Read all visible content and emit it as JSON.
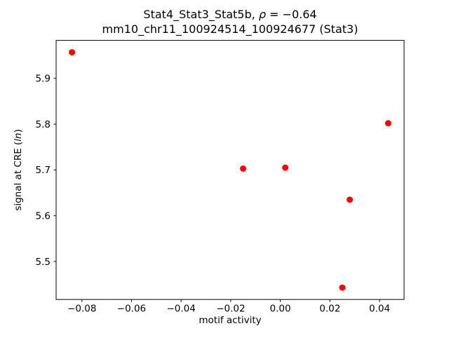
{
  "chart_data": {
    "type": "scatter",
    "title_line1": "Stat4_Stat3_Stat5b, ρ = −0.64",
    "title_line2": "mm10_chr11_100924514_100924677 (Stat3)",
    "title_parts": {
      "pre": "Stat4_Stat3_Stat5b, ",
      "rho": "ρ",
      "eq": " = −0.64"
    },
    "xlabel": "motif activity",
    "ylabel": "signal at CRE (ln)",
    "ylabel_parts": {
      "pre": "signal at CRE (",
      "italic": "ln",
      "post": ")"
    },
    "xlim": [
      -0.0904,
      0.0499
    ],
    "ylim": [
      5.417,
      5.983
    ],
    "xticks": [
      -0.08,
      -0.06,
      -0.04,
      -0.02,
      0.0,
      0.02,
      0.04
    ],
    "yticks": [
      5.5,
      5.6,
      5.7,
      5.8,
      5.9
    ],
    "xtick_decimals": 2,
    "ytick_decimals": 1,
    "points": [
      {
        "x": -0.084,
        "y": 5.957
      },
      {
        "x": 0.0435,
        "y": 5.802
      },
      {
        "x": -0.015,
        "y": 5.703
      },
      {
        "x": 0.002,
        "y": 5.705
      },
      {
        "x": 0.028,
        "y": 5.635
      },
      {
        "x": 0.025,
        "y": 5.443
      }
    ],
    "marker_color": "#ff0000",
    "marker_radius": 4.5,
    "grid": false,
    "legend": "none"
  }
}
